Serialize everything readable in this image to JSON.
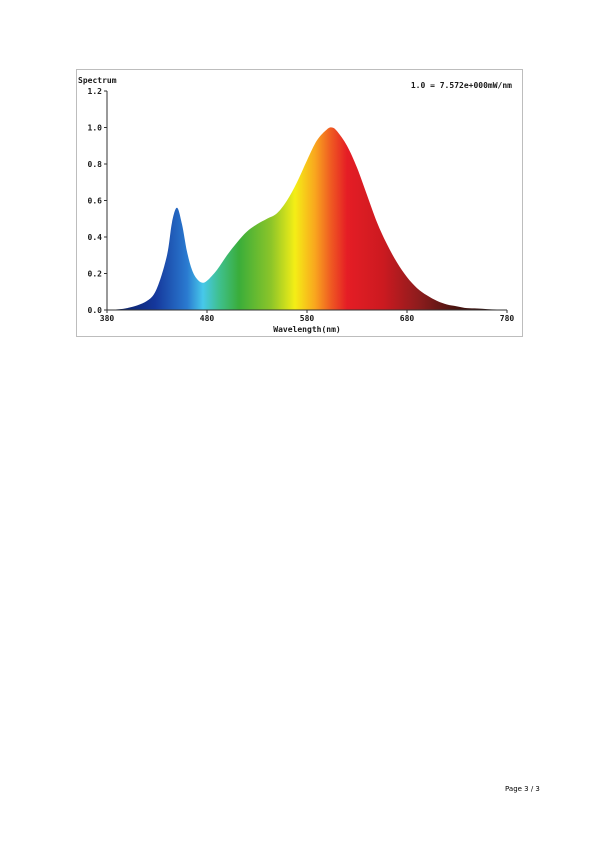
{
  "page": {
    "number_label": "Page 3 / 3"
  },
  "chart_data": {
    "type": "area",
    "title": "Spectrum",
    "annotation": "1.0 = 7.572e+000mW/nm",
    "xlabel": "Wavelength(nm)",
    "ylabel": "",
    "xlim": [
      380,
      780
    ],
    "ylim": [
      0,
      1.2
    ],
    "x_ticks": [
      380,
      480,
      580,
      680,
      780
    ],
    "y_ticks": [
      0.0,
      0.2,
      0.4,
      0.6,
      0.8,
      1.0,
      1.2
    ],
    "x_tick_labels": [
      "380",
      "480",
      "580",
      "680",
      "780"
    ],
    "y_tick_labels": [
      "0.0",
      "0.2",
      "0.4",
      "0.6",
      "0.8",
      "1.0",
      "1.2"
    ],
    "grid": false,
    "fill": "visible-spectrum-gradient",
    "series": [
      {
        "x": [
          380,
          400,
          420,
          430,
          440,
          445,
          450,
          455,
          460,
          465,
          470,
          475,
          480,
          490,
          500,
          510,
          520,
          530,
          540,
          550,
          560,
          570,
          580,
          590,
          600,
          605,
          610,
          620,
          630,
          640,
          650,
          660,
          670,
          680,
          690,
          700,
          710,
          720,
          730,
          740,
          750,
          760,
          770,
          780
        ],
        "y": [
          0.0,
          0.01,
          0.05,
          0.12,
          0.3,
          0.48,
          0.56,
          0.47,
          0.32,
          0.22,
          0.17,
          0.15,
          0.16,
          0.22,
          0.3,
          0.37,
          0.43,
          0.47,
          0.5,
          0.53,
          0.6,
          0.7,
          0.82,
          0.93,
          0.99,
          1.0,
          0.98,
          0.9,
          0.78,
          0.63,
          0.48,
          0.36,
          0.26,
          0.18,
          0.12,
          0.08,
          0.05,
          0.03,
          0.02,
          0.01,
          0.008,
          0.005,
          0.003,
          0.002
        ]
      }
    ]
  }
}
